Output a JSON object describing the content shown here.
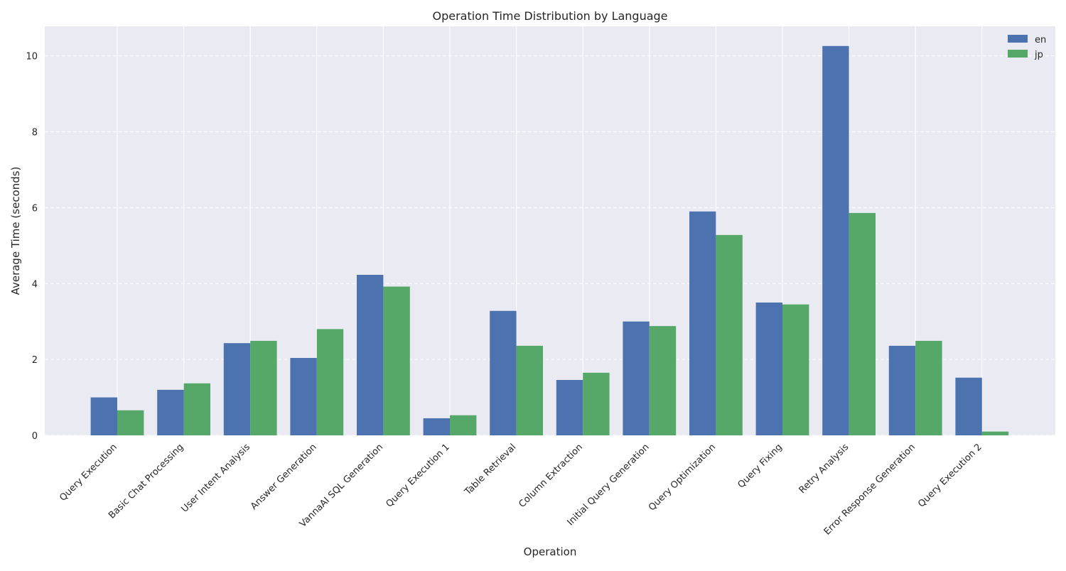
{
  "chart_data": {
    "type": "bar",
    "title": "Operation Time Distribution by Language",
    "xlabel": "Operation",
    "ylabel": "Average Time (seconds)",
    "ylim": [
      0,
      10.78
    ],
    "yticks": [
      0,
      2,
      4,
      6,
      8,
      10
    ],
    "grid": true,
    "legend_position": "top-right",
    "categories": [
      "Query Execution",
      "Basic Chat Processing",
      "User Intent Analysis",
      "Answer Generation",
      "VannaAI SQL Generation",
      "Query Execution 1",
      "Table Retrieval",
      "Column Extraction",
      "Initial Query Generation",
      "Query Optimization",
      "Query Fixing",
      "Retry Analysis",
      "Error Response Generation",
      "Query Execution 2"
    ],
    "series": [
      {
        "name": "en",
        "color": "#4c72b0",
        "values": [
          1.0,
          1.2,
          2.43,
          2.04,
          4.23,
          0.45,
          3.28,
          1.46,
          3.0,
          5.9,
          3.5,
          10.26,
          2.36,
          1.52
        ]
      },
      {
        "name": "jp",
        "color": "#55a868",
        "values": [
          0.66,
          1.37,
          2.49,
          2.8,
          3.92,
          0.53,
          2.36,
          1.65,
          2.88,
          5.28,
          3.45,
          5.86,
          2.49,
          0.1
        ]
      }
    ]
  }
}
